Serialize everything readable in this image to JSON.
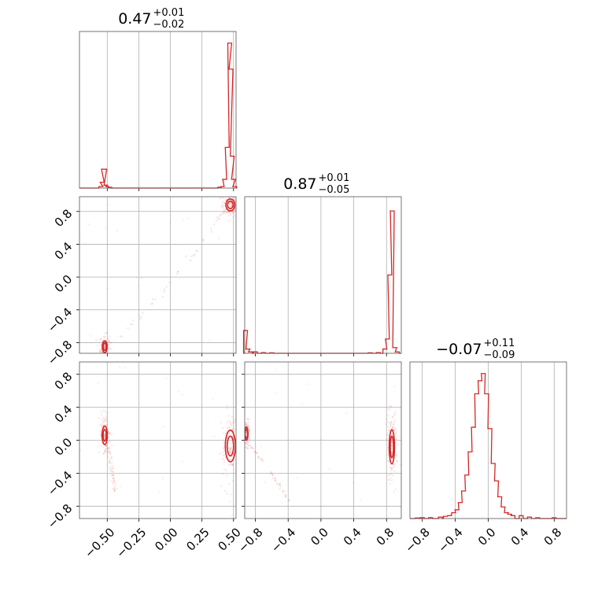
{
  "chart_data": {
    "type": "corner",
    "color": "#d62728",
    "grid": true,
    "titles": [
      {
        "value": "0.47",
        "plus": "+0.01",
        "minus": "−0.02"
      },
      {
        "value": "0.87",
        "plus": "+0.01",
        "minus": "−0.05"
      },
      {
        "value": "−0.07",
        "plus": "+0.11",
        "minus": "−0.09"
      }
    ],
    "axes": [
      {
        "range": [
          -0.72,
          0.52
        ],
        "ticks": [
          -0.5,
          -0.25,
          0.0,
          0.25,
          0.5
        ],
        "tick_labels": [
          "−0.50",
          "−0.25",
          "0.00",
          "0.25",
          "0.50"
        ]
      },
      {
        "range": [
          -0.93,
          0.98
        ],
        "ticks": [
          -0.8,
          -0.4,
          0.0,
          0.4,
          0.8
        ],
        "tick_labels": [
          "−0.8",
          "−0.4",
          "0.0",
          "0.4",
          "0.8"
        ]
      },
      {
        "range": [
          -0.95,
          0.95
        ],
        "ticks": [
          -0.8,
          -0.4,
          0.0,
          0.4,
          0.8
        ],
        "tick_labels": [
          "−0.8",
          "−0.4",
          "0.0",
          "0.4",
          "0.8"
        ]
      }
    ],
    "hist_1": {
      "bins": [
        [
          -0.55,
          0.01
        ],
        [
          -0.54,
          0.04
        ],
        [
          -0.53,
          0.13
        ],
        [
          -0.52,
          0.13
        ],
        [
          -0.51,
          0.02
        ],
        [
          -0.5,
          0.01
        ],
        [
          -0.48,
          0.005
        ],
        [
          0.39,
          0.005
        ],
        [
          0.41,
          0.01
        ],
        [
          0.43,
          0.06
        ],
        [
          0.45,
          0.28
        ],
        [
          0.47,
          1.0
        ],
        [
          0.48,
          0.82
        ],
        [
          0.49,
          0.22
        ],
        [
          0.5,
          0.06
        ],
        [
          0.51,
          0.01
        ]
      ],
      "ymax": 1.08
    },
    "hist_2": {
      "bins": [
        [
          -0.92,
          0.16
        ],
        [
          -0.89,
          0.03
        ],
        [
          -0.86,
          0.01
        ],
        [
          -0.8,
          0.01
        ],
        [
          -0.7,
          0.005
        ],
        [
          -0.6,
          0.003
        ],
        [
          0.6,
          0.003
        ],
        [
          0.7,
          0.005
        ],
        [
          0.78,
          0.03
        ],
        [
          0.81,
          0.1
        ],
        [
          0.84,
          0.55
        ],
        [
          0.87,
          1.0
        ],
        [
          0.9,
          0.04
        ],
        [
          0.93,
          0.01
        ]
      ],
      "ymax": 1.1
    },
    "hist_3": {
      "bins": [
        [
          -0.86,
          0.004
        ],
        [
          -0.8,
          0.006
        ],
        [
          -0.7,
          0.006
        ],
        [
          -0.58,
          0.01
        ],
        [
          -0.52,
          0.015
        ],
        [
          -0.47,
          0.02
        ],
        [
          -0.42,
          0.04
        ],
        [
          -0.38,
          0.06
        ],
        [
          -0.34,
          0.11
        ],
        [
          -0.3,
          0.19
        ],
        [
          -0.26,
          0.3
        ],
        [
          -0.22,
          0.46
        ],
        [
          -0.18,
          0.63
        ],
        [
          -0.14,
          0.86
        ],
        [
          -0.1,
          0.95
        ],
        [
          -0.06,
          1.0
        ],
        [
          -0.02,
          0.86
        ],
        [
          0.02,
          0.62
        ],
        [
          0.06,
          0.38
        ],
        [
          0.1,
          0.26
        ],
        [
          0.14,
          0.15
        ],
        [
          0.18,
          0.08
        ],
        [
          0.22,
          0.04
        ],
        [
          0.26,
          0.03
        ],
        [
          0.3,
          0.02
        ],
        [
          0.4,
          0.02
        ],
        [
          0.5,
          0.01
        ],
        [
          0.6,
          0.005
        ],
        [
          0.8,
          0.005
        ]
      ],
      "ymax": 1.08
    },
    "pair_2_1": {
      "clusters": [
        [
          0.475,
          0.88,
          0.022,
          0.045
        ],
        [
          -0.52,
          -0.85,
          0.012,
          0.045
        ]
      ],
      "arc": {
        "from": [
          -0.5,
          -0.8
        ],
        "to": [
          0.45,
          0.85
        ]
      }
    },
    "pair_3_1": {
      "clusters": [
        [
          0.475,
          -0.07,
          0.025,
          0.12
        ],
        [
          -0.52,
          0.06,
          0.013,
          0.07
        ]
      ],
      "arc": {
        "from": [
          -0.5,
          -0.05
        ],
        "to": [
          -0.44,
          -0.62
        ]
      }
    },
    "pair_3_2": {
      "clusters": [
        [
          0.865,
          -0.08,
          0.02,
          0.13
        ],
        [
          -0.91,
          0.08,
          0.012,
          0.05
        ]
      ],
      "arc": {
        "from": [
          -0.91,
          -0.05
        ],
        "to": [
          -0.38,
          -0.75
        ]
      }
    }
  }
}
